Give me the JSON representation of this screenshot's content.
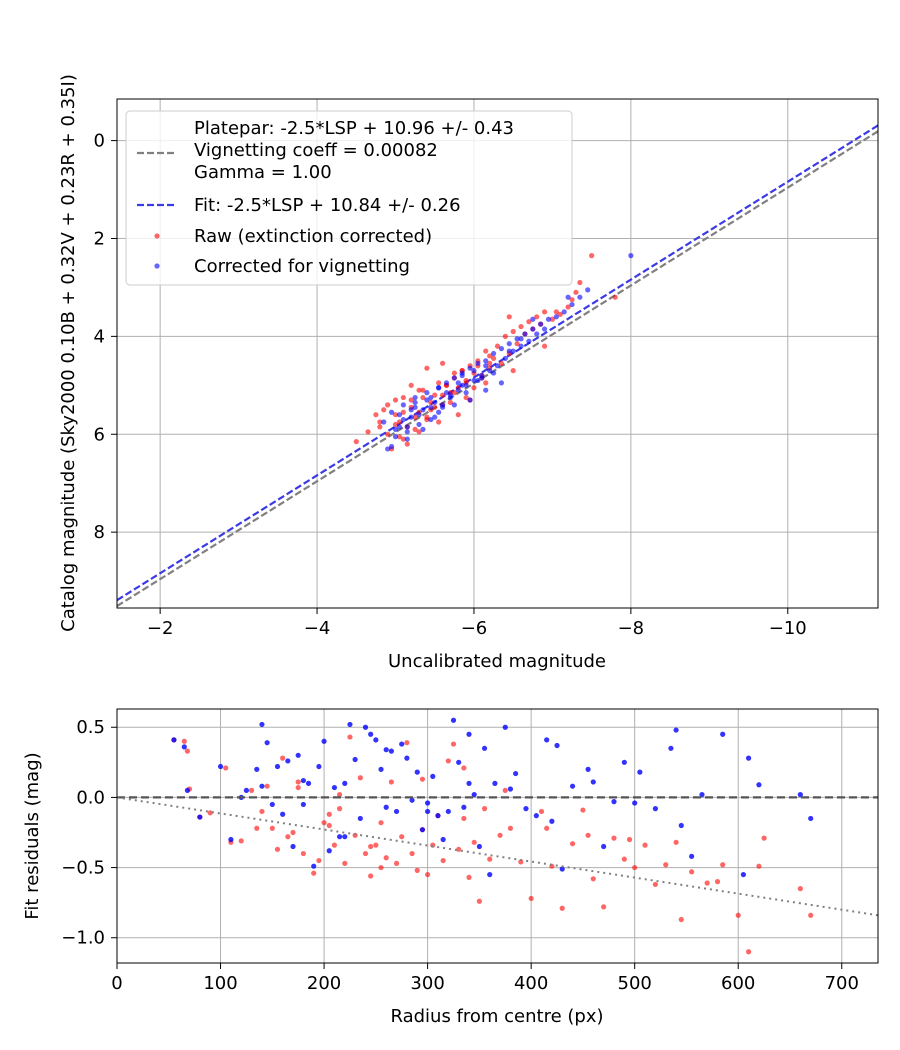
{
  "chart_data": [
    {
      "type": "scatter",
      "xlabel": "Uncalibrated magnitude",
      "ylabel": "Catalog magnitude (Sky2000 0.10B + 0.32V + 0.23R + 0.35I)",
      "xlim": [
        -1.45,
        -11.15
      ],
      "ylim": [
        9.55,
        -0.85
      ],
      "x_inverted": true,
      "y_inverted": true,
      "grid": true,
      "x_ticks": [
        -2,
        -4,
        -6,
        -8,
        -10
      ],
      "x_tick_labels": [
        "−2",
        "−4",
        "−6",
        "−8",
        "−10"
      ],
      "y_ticks": [
        0,
        2,
        4,
        6,
        8
      ],
      "y_tick_labels": [
        "0",
        "2",
        "4",
        "6",
        "8"
      ],
      "legend_placement": "upper-left",
      "legend": [
        {
          "label": "Platepar: -2.5*LSP + 10.96 +/- 0.43\nVignetting coeff = 0.00082\nGamma = 1.00",
          "style": "dashed",
          "color": "#808080"
        },
        {
          "label": "Fit: -2.5*LSP + 10.84 +/- 0.26",
          "style": "dashed",
          "color": "#3a3ae6"
        },
        {
          "label": "Raw (extinction corrected)",
          "style": "marker",
          "color": "#ff0000"
        },
        {
          "label": "Corrected for vignetting",
          "style": "marker",
          "color": "#0000ff"
        }
      ],
      "lines": [
        {
          "name": "Platepar",
          "slope": 1.0,
          "intercept": 10.96,
          "color": "#808080",
          "dash": "dashed"
        },
        {
          "name": "Fit",
          "slope": 1.0,
          "intercept": 10.84,
          "color": "#3a3ae6",
          "dash": "dashed"
        }
      ],
      "series": [
        {
          "name": "Raw (extinction corrected)",
          "color": "#ff0000",
          "x": [
            -4.5,
            -4.65,
            -4.75,
            -4.8,
            -4.85,
            -4.9,
            -4.95,
            -5.0,
            -5.05,
            -5.1,
            -5.15,
            -5.2,
            -5.2,
            -5.25,
            -5.3,
            -5.35,
            -5.4,
            -5.45,
            -5.5,
            -5.55,
            -5.6,
            -5.65,
            -5.7,
            -5.75,
            -5.8,
            -5.85,
            -5.9,
            -5.95,
            -6.0,
            -6.05,
            -6.1,
            -6.15,
            -6.2,
            -6.25,
            -6.3,
            -6.35,
            -6.4,
            -6.45,
            -6.5,
            -6.55,
            -6.6,
            -6.65,
            -6.7,
            -6.75,
            -6.8,
            -6.85,
            -6.9,
            -7.0,
            -7.1,
            -7.2,
            -7.25,
            -7.3,
            -7.35,
            -7.5,
            -7.8,
            -4.9,
            -5.0,
            -5.1,
            -5.2,
            -5.3,
            -5.4,
            -5.5,
            -5.6,
            -5.7,
            -5.8,
            -5.9,
            -6.0,
            -6.1,
            -6.2,
            -5.05,
            -5.15,
            -5.25,
            -5.35,
            -5.45,
            -5.55,
            -5.65,
            -5.75,
            -5.85,
            -5.95,
            -6.05,
            -6.15,
            -5.0,
            -5.3,
            -5.6,
            -5.9,
            -6.2,
            -6.5,
            -4.8,
            -5.1,
            -5.4,
            -6.9,
            -7.05,
            -6.45,
            -5.75
          ],
          "y": [
            6.15,
            5.95,
            5.6,
            5.85,
            5.5,
            6.0,
            6.3,
            5.3,
            5.75,
            5.25,
            6.2,
            5.45,
            5.0,
            5.9,
            5.55,
            5.1,
            5.65,
            5.35,
            5.2,
            4.95,
            5.4,
            5.0,
            5.15,
            4.85,
            5.05,
            4.7,
            4.9,
            4.6,
            5.05,
            4.5,
            4.8,
            4.3,
            4.65,
            4.45,
            4.2,
            4.55,
            4.0,
            4.35,
            3.9,
            4.15,
            3.8,
            3.95,
            3.7,
            3.85,
            3.6,
            3.75,
            3.5,
            3.65,
            3.55,
            3.4,
            3.25,
            3.1,
            2.9,
            2.35,
            3.2,
            5.4,
            5.8,
            5.55,
            5.3,
            5.95,
            5.7,
            5.45,
            5.2,
            5.35,
            5.6,
            4.95,
            4.75,
            4.85,
            4.55,
            6.05,
            5.85,
            5.65,
            5.25,
            5.5,
            5.75,
            5.0,
            5.15,
            4.7,
            5.3,
            4.6,
            4.95,
            5.6,
            5.1,
            4.55,
            5.25,
            4.4,
            4.7,
            5.75,
            6.1,
            4.65,
            4.2,
            3.5,
            3.6,
            4.75
          ]
        },
        {
          "name": "Corrected for vignetting",
          "color": "#0000ff",
          "x": [
            -4.85,
            -4.9,
            -4.95,
            -5.0,
            -5.05,
            -5.1,
            -5.15,
            -5.2,
            -5.25,
            -5.3,
            -5.35,
            -5.4,
            -5.45,
            -5.5,
            -5.55,
            -5.6,
            -5.65,
            -5.7,
            -5.75,
            -5.8,
            -5.85,
            -5.9,
            -5.95,
            -6.0,
            -6.05,
            -6.1,
            -6.15,
            -6.2,
            -6.25,
            -6.3,
            -6.35,
            -6.4,
            -6.45,
            -6.5,
            -6.55,
            -6.6,
            -6.65,
            -6.7,
            -6.75,
            -6.8,
            -6.85,
            -6.9,
            -6.95,
            -7.05,
            -7.15,
            -7.25,
            -7.35,
            -7.45,
            -8.0,
            -4.95,
            -5.05,
            -5.15,
            -5.25,
            -5.35,
            -5.45,
            -5.55,
            -5.65,
            -5.75,
            -5.85,
            -5.95,
            -6.05,
            -6.15,
            -6.25,
            -6.35,
            -5.0,
            -5.1,
            -5.2,
            -5.3,
            -5.4,
            -5.5,
            -5.6,
            -5.7,
            -5.8,
            -5.9,
            -6.0,
            -6.1,
            -5.25,
            -5.55,
            -5.85,
            -6.15,
            -6.45,
            -6.75,
            -5.15,
            -5.45,
            -6.6,
            -7.2
          ],
          "y": [
            5.75,
            6.3,
            5.55,
            6.05,
            5.85,
            5.4,
            5.95,
            5.65,
            5.25,
            5.8,
            5.5,
            5.15,
            5.7,
            5.35,
            5.05,
            5.45,
            4.95,
            5.25,
            4.85,
            5.1,
            4.75,
            5.0,
            4.65,
            4.9,
            4.55,
            4.8,
            4.5,
            4.7,
            4.35,
            4.6,
            4.25,
            4.45,
            4.15,
            4.3,
            4.05,
            4.2,
            3.95,
            4.1,
            3.85,
            3.95,
            3.75,
            3.85,
            3.65,
            3.6,
            3.5,
            3.35,
            3.2,
            3.05,
            2.35,
            6.25,
            5.6,
            6.1,
            5.45,
            5.9,
            5.25,
            5.55,
            5.15,
            5.4,
            5.0,
            5.3,
            4.9,
            5.1,
            4.75,
            4.95,
            5.9,
            5.7,
            5.5,
            5.6,
            5.3,
            5.65,
            5.4,
            5.2,
            4.95,
            5.15,
            4.7,
            4.85,
            5.35,
            5.05,
            4.8,
            4.6,
            4.3,
            3.65,
            5.85,
            5.45,
            4.05,
            3.2
          ]
        }
      ]
    },
    {
      "type": "scatter",
      "xlabel": "Radius from centre (px)",
      "ylabel": "Fit residuals (mag)",
      "xlim": [
        0,
        735
      ],
      "ylim": [
        -1.18,
        0.63
      ],
      "grid": true,
      "x_ticks": [
        0,
        100,
        200,
        300,
        400,
        500,
        600,
        700
      ],
      "x_tick_labels": [
        "0",
        "100",
        "200",
        "300",
        "400",
        "500",
        "600",
        "700"
      ],
      "y_ticks": [
        0.5,
        0.0,
        -0.5,
        -1.0
      ],
      "y_tick_labels": [
        "0.5",
        "0.0",
        "−0.5",
        "−1.0"
      ],
      "lines": [
        {
          "name": "zero",
          "points": [
            [
              0,
              0
            ],
            [
              735,
              0
            ]
          ],
          "color": "#555555",
          "dash": "dashed"
        },
        {
          "name": "vignetting",
          "points": [
            [
              0,
              0
            ],
            [
              735,
              -0.84
            ]
          ],
          "color": "#808080",
          "dash": "dotted"
        }
      ],
      "series": [
        {
          "name": "Raw (extinction corrected)",
          "color": "#ff0000",
          "x": [
            55,
            65,
            68,
            70,
            80,
            90,
            105,
            110,
            120,
            130,
            140,
            145,
            150,
            155,
            160,
            165,
            170,
            175,
            180,
            190,
            195,
            200,
            205,
            210,
            215,
            220,
            225,
            230,
            235,
            240,
            245,
            250,
            255,
            260,
            265,
            270,
            275,
            280,
            285,
            290,
            295,
            300,
            305,
            310,
            315,
            320,
            325,
            330,
            335,
            340,
            345,
            350,
            355,
            360,
            370,
            380,
            390,
            400,
            410,
            420,
            430,
            440,
            450,
            460,
            470,
            480,
            490,
            500,
            510,
            520,
            530,
            545,
            555,
            570,
            585,
            600,
            610,
            620,
            660,
            670,
            135,
            175,
            215,
            255,
            295,
            335,
            375,
            415,
            455,
            495,
            540,
            580,
            625,
            205,
            245
          ],
          "y": [
            0.41,
            0.4,
            0.33,
            0.06,
            -0.14,
            -0.11,
            0.21,
            -0.32,
            -0.31,
            0.05,
            -0.1,
            0.08,
            -0.22,
            -0.37,
            0.28,
            -0.28,
            -0.25,
            0.07,
            -0.4,
            -0.54,
            -0.45,
            -0.18,
            -0.2,
            -0.34,
            0.02,
            -0.47,
            0.43,
            -0.27,
            0.14,
            -0.4,
            -0.56,
            -0.34,
            -0.18,
            -0.43,
            0.11,
            -0.47,
            -0.28,
            0.39,
            -0.4,
            -0.52,
            -0.23,
            -0.55,
            -0.34,
            -0.13,
            -0.45,
            0.26,
            0.38,
            -0.37,
            -0.15,
            -0.57,
            -0.32,
            -0.74,
            -0.08,
            -0.44,
            -0.27,
            -0.22,
            -0.46,
            -0.72,
            -0.1,
            -0.49,
            -0.79,
            -0.33,
            -0.09,
            -0.58,
            -0.78,
            -0.29,
            -0.44,
            -0.5,
            -0.34,
            -0.62,
            -0.48,
            -0.87,
            -0.53,
            -0.61,
            -0.48,
            -0.84,
            -1.1,
            -0.49,
            -0.65,
            -0.84,
            -0.22,
            0.11,
            -0.08,
            -0.5,
            0.13,
            0.21,
            0.05,
            -0.22,
            -0.27,
            -0.3,
            -0.32,
            -0.6,
            -0.29,
            -0.12,
            -0.35
          ]
        },
        {
          "name": "Corrected for vignetting",
          "color": "#0000ff",
          "x": [
            55,
            65,
            68,
            80,
            100,
            110,
            120,
            125,
            135,
            140,
            145,
            150,
            155,
            160,
            165,
            170,
            175,
            180,
            185,
            190,
            195,
            200,
            205,
            210,
            215,
            220,
            225,
            230,
            235,
            240,
            245,
            250,
            255,
            260,
            265,
            270,
            275,
            280,
            285,
            290,
            295,
            300,
            305,
            310,
            315,
            320,
            325,
            330,
            335,
            340,
            345,
            350,
            355,
            360,
            365,
            375,
            385,
            395,
            405,
            415,
            425,
            430,
            440,
            455,
            470,
            480,
            490,
            505,
            520,
            535,
            540,
            545,
            555,
            565,
            585,
            605,
            610,
            620,
            660,
            670,
            140,
            180,
            220,
            260,
            300,
            340,
            380,
            420,
            460,
            500
          ],
          "y": [
            0.41,
            0.36,
            0.05,
            -0.14,
            0.22,
            -0.3,
            0.0,
            0.05,
            0.2,
            0.52,
            0.39,
            -0.05,
            0.22,
            -0.12,
            0.26,
            -0.35,
            0.3,
            -0.05,
            0.1,
            -0.49,
            0.22,
            0.4,
            -0.38,
            0.07,
            -0.28,
            0.1,
            0.52,
            0.27,
            -0.15,
            0.5,
            0.45,
            0.41,
            0.2,
            -0.07,
            0.33,
            -0.1,
            0.38,
            0.28,
            -0.02,
            0.18,
            -0.23,
            -0.1,
            0.15,
            -0.13,
            -0.3,
            -0.1,
            0.55,
            0.25,
            -0.07,
            0.45,
            0.02,
            -0.35,
            0.35,
            -0.55,
            0.1,
            0.5,
            0.17,
            -0.08,
            -0.13,
            0.41,
            0.37,
            -0.51,
            0.08,
            0.2,
            -0.35,
            -0.03,
            0.25,
            0.18,
            -0.08,
            0.35,
            0.48,
            -0.2,
            -0.42,
            0.02,
            0.45,
            -0.55,
            0.28,
            0.09,
            0.02,
            -0.15,
            0.08,
            0.12,
            -0.28,
            0.34,
            -0.04,
            0.1,
            0.06,
            -0.17,
            0.11,
            -0.04
          ]
        }
      ]
    }
  ]
}
